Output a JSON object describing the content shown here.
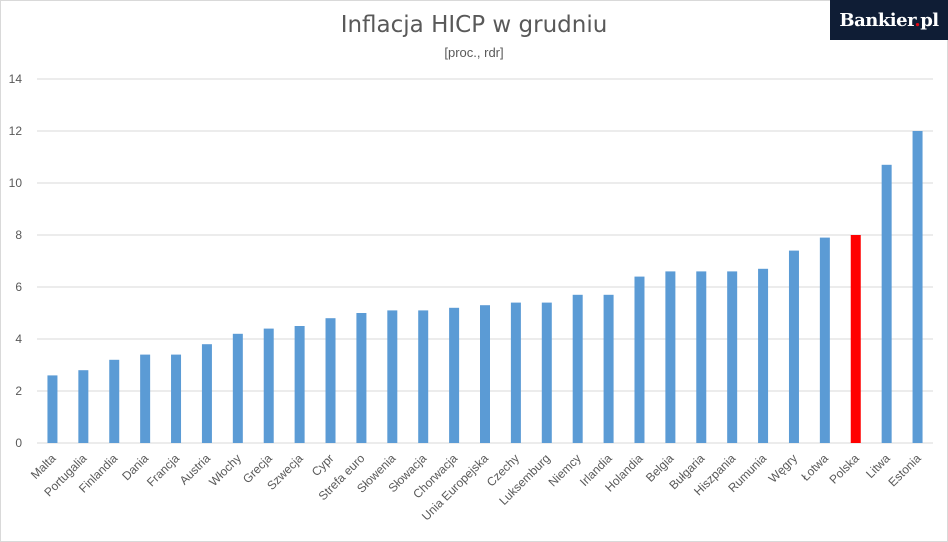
{
  "header": {
    "title": "Inflacja HICP w grudniu",
    "subtitle": "[proc., rdr]"
  },
  "logo": {
    "text_main": "Bankier",
    "text_dot": ".",
    "text_suffix": "pl"
  },
  "colors": {
    "bar": "#5b9bd5",
    "highlight": "#ff0000",
    "grid": "#d9d9d9",
    "logo_bg": "#0f1d35"
  },
  "chart_data": {
    "type": "bar",
    "title": "Inflacja HICP w grudniu",
    "subtitle": "[proc., rdr]",
    "xlabel": "",
    "ylabel": "",
    "ylim": [
      0,
      14
    ],
    "yticks": [
      0,
      2,
      4,
      6,
      8,
      10,
      12,
      14
    ],
    "grid": true,
    "legend": "none",
    "highlight_category": "Polska",
    "categories": [
      "Malta",
      "Portugalia",
      "Finlandia",
      "Dania",
      "Francja",
      "Austria",
      "Włochy",
      "Grecja",
      "Szwecja",
      "Cypr",
      "Strefa euro",
      "Słowenia",
      "Słowacja",
      "Chorwacja",
      "Unia Europejska",
      "Czechy",
      "Luksemburg",
      "Niemcy",
      "Irlandia",
      "Holandia",
      "Belgia",
      "Bułgaria",
      "Hiszpania",
      "Rumunia",
      "Węgry",
      "Łotwa",
      "Polska",
      "Litwa",
      "Estonia"
    ],
    "values": [
      2.6,
      2.8,
      3.2,
      3.4,
      3.4,
      3.8,
      4.2,
      4.4,
      4.5,
      4.8,
      5.0,
      5.1,
      5.1,
      5.2,
      5.3,
      5.4,
      5.4,
      5.7,
      5.7,
      6.4,
      6.6,
      6.6,
      6.6,
      6.7,
      7.4,
      7.9,
      8.0,
      10.7,
      12.0
    ]
  }
}
